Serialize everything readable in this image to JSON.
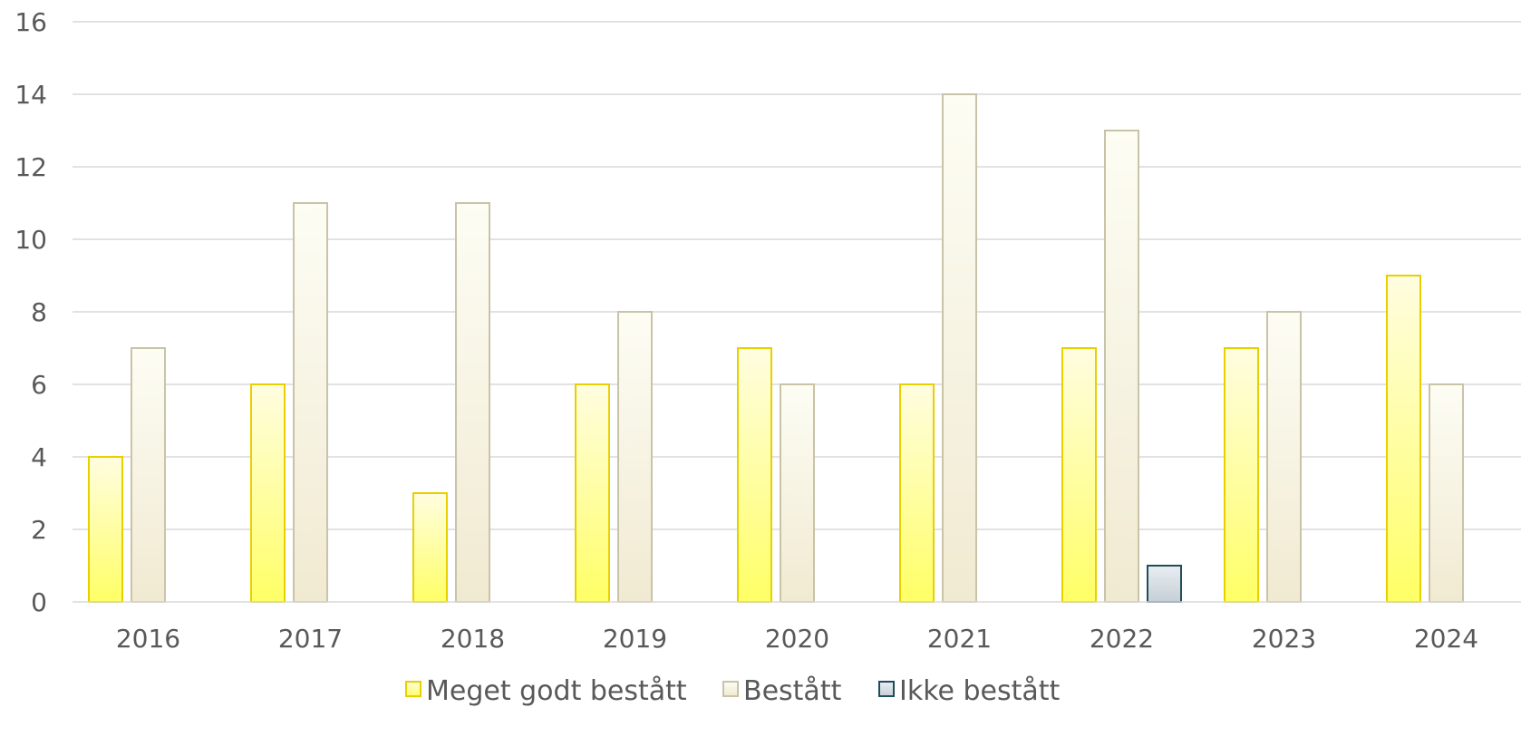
{
  "chart_data": {
    "type": "bar",
    "categories": [
      "2016",
      "2017",
      "2018",
      "2019",
      "2020",
      "2021",
      "2022",
      "2023",
      "2024"
    ],
    "series": [
      {
        "name": "Meget godt bestått",
        "values": [
          4,
          6,
          3,
          6,
          7,
          6,
          7,
          7,
          9
        ],
        "fill_top": "#fffde0",
        "fill_bottom": "#ffff66",
        "stroke": "#e8d000"
      },
      {
        "name": "Bestått",
        "values": [
          7,
          11,
          11,
          8,
          6,
          14,
          13,
          8,
          6
        ],
        "fill_top": "#fdfdf4",
        "fill_bottom": "#f1ead2",
        "stroke": "#c9c3a8"
      },
      {
        "name": "Ikke bestått",
        "values": [
          0,
          0,
          0,
          0,
          0,
          0,
          1,
          0,
          0
        ],
        "fill_top": "#e9eef2",
        "fill_bottom": "#c6cfd6",
        "stroke": "#1f4e5a"
      }
    ],
    "yticks": [
      "0",
      "2",
      "4",
      "6",
      "8",
      "10",
      "12",
      "14",
      "16"
    ],
    "ylim": [
      0,
      16
    ],
    "grid": true,
    "legend_position": "bottom",
    "title": "",
    "xlabel": "",
    "ylabel": ""
  }
}
